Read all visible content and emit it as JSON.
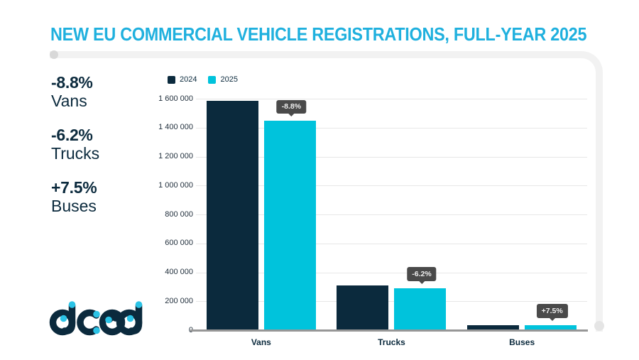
{
  "title": "NEW EU COMMERCIAL VEHICLE REGISTRATIONS, FULL-YEAR 2025",
  "colors": {
    "navy": "#0b2a3d",
    "cyan": "#00c3dc",
    "title_accent": "#1fb0de",
    "tooltip_bg": "#4a4a4a",
    "gridline": "#e7e7e7",
    "axis_line": "#979797",
    "frame": "#f2f2f2"
  },
  "stats": [
    {
      "value": "-8.8%",
      "label": "Vans"
    },
    {
      "value": "-6.2%",
      "label": "Trucks"
    },
    {
      "value": "+7.5%",
      "label": "Buses"
    }
  ],
  "legend": [
    {
      "label": "2024",
      "color": "#0b2a3d"
    },
    {
      "label": "2025",
      "color": "#00c3dc"
    }
  ],
  "chart_data": {
    "type": "bar",
    "title": "NEW EU COMMERCIAL VEHICLE REGISTRATIONS, FULL-YEAR 2025",
    "categories": [
      "Vans",
      "Trucks",
      "Buses"
    ],
    "series": [
      {
        "name": "2024",
        "color": "#0b2a3d",
        "values": [
          1585000,
          310000,
          34000
        ]
      },
      {
        "name": "2025",
        "color": "#00c3dc",
        "values": [
          1446000,
          291000,
          36550
        ]
      }
    ],
    "change_labels": [
      "-8.8%",
      "-6.2%",
      "+7.5%"
    ],
    "xlabel": "",
    "ylabel": "",
    "ylim": [
      0,
      1600000
    ],
    "ytick_step": 200000,
    "ytick_labels": [
      "0",
      "200 000",
      "400 000",
      "600 000",
      "800 000",
      "1 000 000",
      "1 200 000",
      "1 400 000",
      "1 600 000"
    ],
    "grid": "horizontal",
    "legend_position": "top-left"
  },
  "logo": {
    "name": "acea"
  }
}
